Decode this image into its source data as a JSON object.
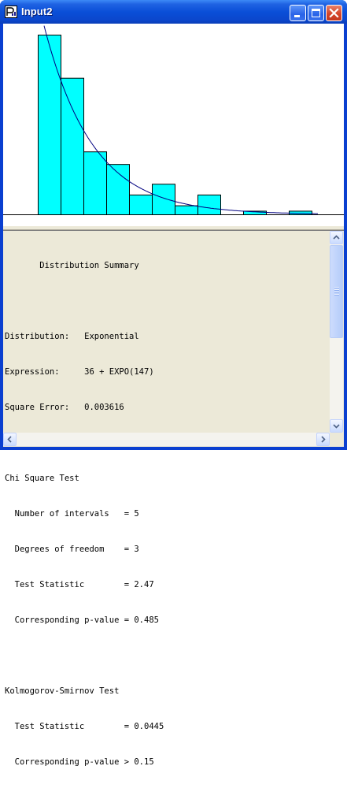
{
  "window": {
    "title": "Input2",
    "title_bar_color": "#0a4fd8"
  },
  "title_buttons": {
    "minimize": "minimize-icon",
    "maximize": "maximize-icon",
    "close": "close-icon"
  },
  "chart_data": {
    "type": "bar",
    "histogram_fill": "#00ffff",
    "curve_color": "#000080",
    "bars": [
      {
        "height": 100
      },
      {
        "height": 76
      },
      {
        "height": 35
      },
      {
        "height": 28
      },
      {
        "height": 11
      },
      {
        "height": 17
      },
      {
        "height": 5
      },
      {
        "height": 11
      },
      {
        "height": 0
      },
      {
        "height": 2
      },
      {
        "height": 0
      },
      {
        "height": 2
      }
    ],
    "ylim": [
      0,
      100
    ],
    "fitted_curve": {
      "distribution": "Exponential",
      "offset": 36,
      "mean": 147
    }
  },
  "report": {
    "heading": "       Distribution Summary",
    "distribution": "Distribution:   Exponential",
    "expression": "Expression:     36 + EXPO(147)",
    "square_error": "Square Error:   0.003616",
    "chi_heading": "Chi Square Test",
    "chi_intervals": "  Number of intervals   = 5",
    "chi_dof": "  Degrees of freedom    = 3",
    "chi_stat": "  Test Statistic        = 2.47",
    "chi_p": "  Corresponding p-value = 0.485",
    "ks_heading": "Kolmogorov-Smirnov Test",
    "ks_stat": "  Test Statistic        = 0.0445",
    "ks_p": "  Corresponding p-value > 0.15"
  },
  "scrollbar": {
    "position": 0.0
  }
}
